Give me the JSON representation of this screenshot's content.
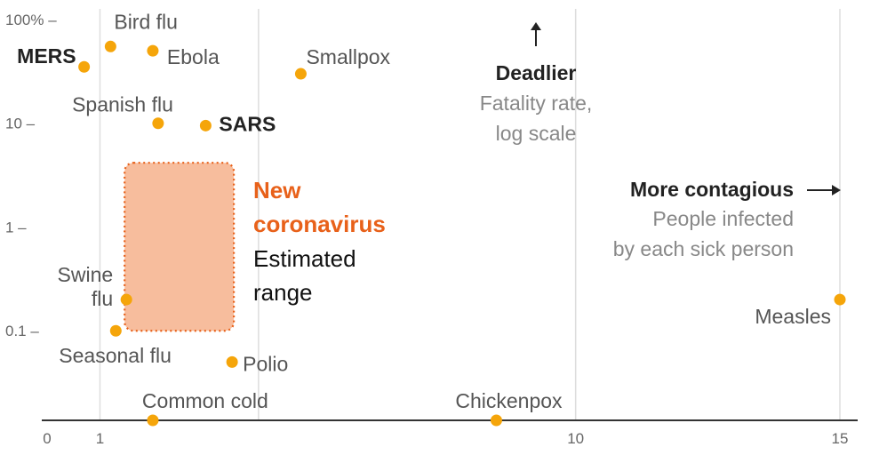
{
  "chart_data": {
    "type": "scatter",
    "x_axis": {
      "label": "",
      "ticks": [
        {
          "value": 0,
          "label": "0"
        },
        {
          "value": 1,
          "label": "1"
        },
        {
          "value": 10,
          "label": "10"
        },
        {
          "value": 15,
          "label": "15"
        }
      ],
      "range": [
        -0.1,
        15.3
      ]
    },
    "y_axis": {
      "scale": "log",
      "ticks": [
        {
          "value": 100,
          "label": "100% –"
        },
        {
          "value": 10,
          "label": "10 –"
        },
        {
          "value": 1,
          "label": "1 –"
        },
        {
          "value": 0.1,
          "label": "0.1 –"
        }
      ],
      "range": [
        0.0137,
        100
      ]
    },
    "vertical_gridlines_at": [
      1,
      4,
      10,
      15
    ],
    "point_color": "#f5a50a",
    "points": [
      {
        "name": "Bird flu",
        "bold": false,
        "x": 1.2,
        "y": 55
      },
      {
        "name": "MERS",
        "bold": true,
        "x": 0.7,
        "y": 35
      },
      {
        "name": "Ebola",
        "bold": false,
        "x": 2.0,
        "y": 50
      },
      {
        "name": "Smallpox",
        "bold": false,
        "x": 4.8,
        "y": 30
      },
      {
        "name": "Spanish flu",
        "bold": false,
        "x": 2.1,
        "y": 10
      },
      {
        "name": "SARS",
        "bold": true,
        "x": 3.0,
        "y": 9.5
      },
      {
        "name": "Swine flu",
        "bold": false,
        "x": 1.5,
        "y": 0.2
      },
      {
        "name": "Seasonal flu",
        "bold": false,
        "x": 1.3,
        "y": 0.1
      },
      {
        "name": "Polio",
        "bold": false,
        "x": 3.5,
        "y": 0.05
      },
      {
        "name": "Common cold",
        "bold": false,
        "x": 2.0,
        "y": 0.0137
      },
      {
        "name": "Chickenpox",
        "bold": false,
        "x": 8.5,
        "y": 0.0137
      },
      {
        "name": "Measles",
        "bold": false,
        "x": 15.0,
        "y": 0.2
      }
    ],
    "range_box": {
      "title": "New coronavirus",
      "subtitle": "Estimated range",
      "color": "#f4a173",
      "x_range": [
        1.5,
        3.5
      ],
      "y_range": [
        0.1,
        4
      ]
    },
    "annotations": {
      "y_direction": {
        "title": "Deadlier",
        "subtitle_lines": [
          "Fatality rate,",
          "log scale"
        ]
      },
      "x_direction": {
        "title": "More contagious",
        "subtitle_lines": [
          "People infected",
          "by each sick person"
        ]
      }
    }
  }
}
